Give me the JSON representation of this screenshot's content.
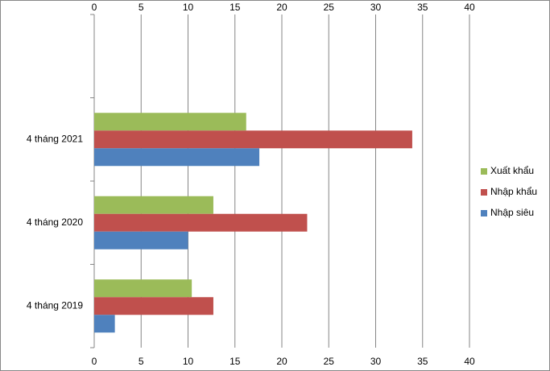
{
  "chart_data": {
    "type": "bar",
    "orientation": "horizontal",
    "categories": [
      "4 tháng 2019",
      "4 tháng 2020",
      "4 tháng 2021",
      null
    ],
    "series": [
      {
        "name": "Xuất khẩu",
        "color": "#9bbb59",
        "values": [
          10.4,
          12.7,
          16.2,
          null
        ]
      },
      {
        "name": "Nhập khẩu",
        "color": "#c0504d",
        "values": [
          12.7,
          22.7,
          33.9,
          null
        ]
      },
      {
        "name": "Nhập siêu",
        "color": "#4f81bd",
        "values": [
          2.2,
          10.0,
          17.6,
          null
        ]
      }
    ],
    "xlim": [
      0,
      40
    ],
    "xticks": [
      0,
      5,
      10,
      15,
      20,
      25,
      30,
      35,
      40
    ],
    "grid": true,
    "legend": "right"
  }
}
